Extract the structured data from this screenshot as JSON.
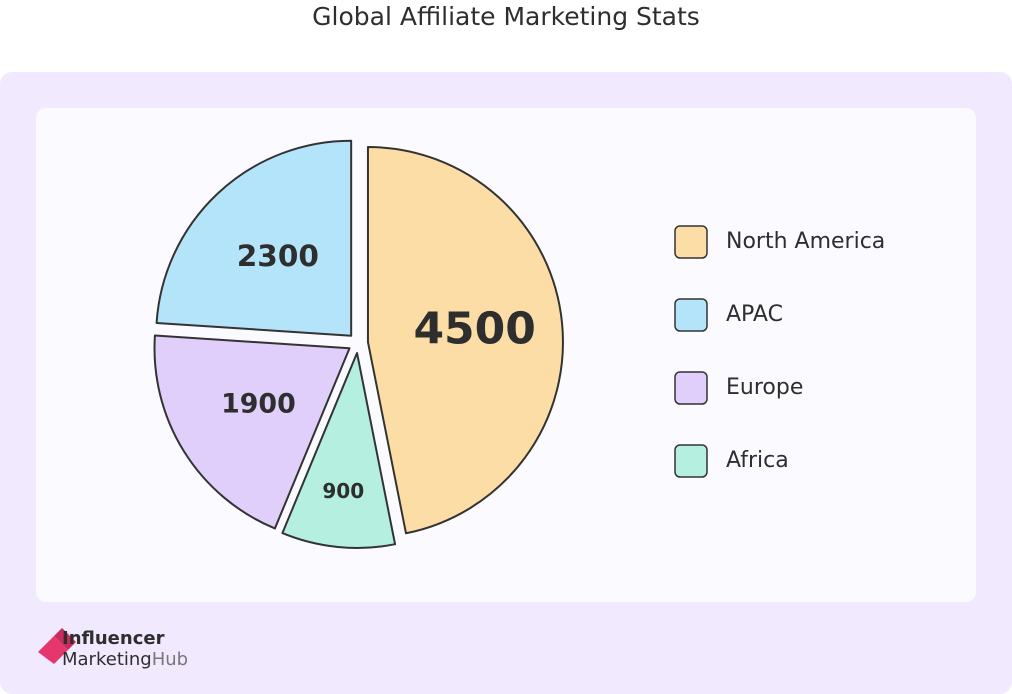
{
  "chart_data": {
    "type": "pie",
    "title": "Global Affiliate Marketing Stats",
    "categories": [
      "North America",
      "APAC",
      "Europe",
      "Africa"
    ],
    "values": [
      4500,
      2300,
      1900,
      900
    ],
    "colors": [
      "#fddda6",
      "#b4e4f9",
      "#e1cffb",
      "#b5efdf"
    ],
    "legend": "right"
  },
  "logo": {
    "line1": "Influencer",
    "line2a": "Marketing",
    "line2b": "Hub"
  }
}
